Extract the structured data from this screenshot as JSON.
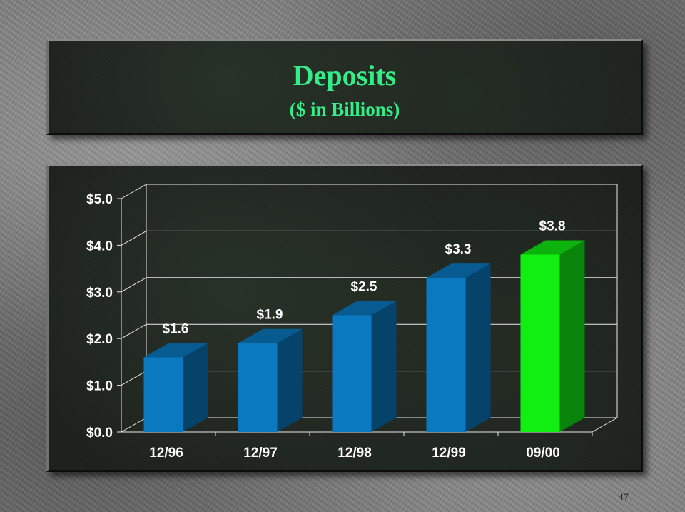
{
  "slide": {
    "title": "Deposits",
    "subtitle": "($ in Billions)",
    "page_number": "47"
  },
  "colors": {
    "title_text": "#33ee88",
    "bar_default": "#0b79c0",
    "bar_highlight": "#11ee11",
    "panel": "#1c201c"
  },
  "chart_data": {
    "type": "bar",
    "categories": [
      "12/96",
      "12/97",
      "12/98",
      "12/99",
      "09/00"
    ],
    "values": [
      1.6,
      1.9,
      2.5,
      3.3,
      3.8
    ],
    "data_labels": [
      "$1.6",
      "$1.9",
      "$2.5",
      "$3.3",
      "$3.8"
    ],
    "highlight_index": 4,
    "y_ticks": [
      "$0.0",
      "$1.0",
      "$2.0",
      "$3.0",
      "$4.0",
      "$5.0"
    ],
    "ylim": [
      0,
      5
    ],
    "grid": true,
    "three_d": true,
    "title": "",
    "xlabel": "",
    "ylabel": ""
  }
}
